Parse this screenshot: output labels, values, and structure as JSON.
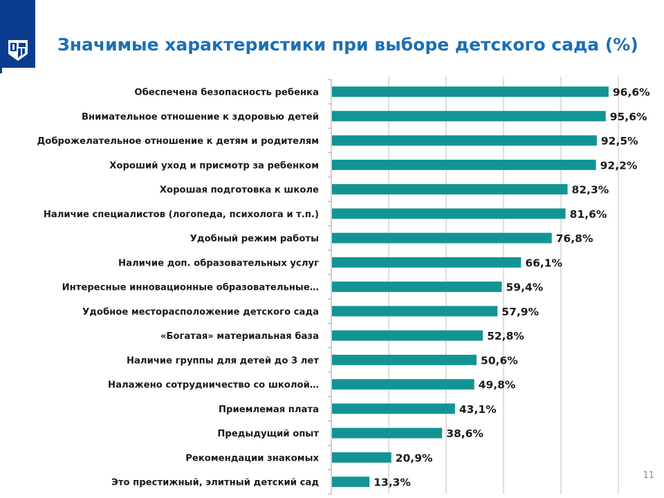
{
  "slide": {
    "title": "Значимые характеристики при выборе детского сада (%)",
    "page_number": "11",
    "logo_icon": "publisher-logo-icon",
    "colors": {
      "logo_background": "#0a3d8f",
      "title": "#1a6fb5",
      "bar": "#139494",
      "gridline": "#c8c8c8"
    }
  },
  "chart_data": {
    "type": "bar",
    "orientation": "horizontal",
    "title": "Значимые характеристики при выборе детского сада (%)",
    "xlabel": "",
    "ylabel": "",
    "xlim": [
      0,
      120
    ],
    "grid": true,
    "legend": "none",
    "value_suffix": "%",
    "categories": [
      "Обеспечена безопасность ребенка",
      "Внимательное отношение к здоровью детей",
      "Доброжелательное отношение к детям и родителям",
      "Хороший уход и присмотр за ребенком",
      "Хорошая подготовка к школе",
      "Наличие  специалистов (логопеда, психолога и т.п.)",
      "Удобный режим работы",
      "Наличие доп. образовательных услуг",
      "Интересные инновационные образовательные…",
      "Удобное месторасположение детского сада",
      "«Богатая» материальная база",
      "Наличие группы для детей до 3 лет",
      "Налажено сотрудничество со школой…",
      "Приемлемая плата",
      "Предыдущий опыт",
      "Рекомендации знакомых",
      "Это престижный, элитный детский сад"
    ],
    "values": [
      96.6,
      95.6,
      92.5,
      92.2,
      82.3,
      81.6,
      76.8,
      66.1,
      59.4,
      57.9,
      52.8,
      50.6,
      49.8,
      43.1,
      38.6,
      20.9,
      13.3
    ],
    "data_labels": [
      "96,6%",
      "95,6%",
      "92,5%",
      "92,2%",
      "82,3%",
      "81,6%",
      "76,8%",
      "66,1%",
      "59,4%",
      "57,9%",
      "52,8%",
      "50,6%",
      "49,8%",
      "43,1%",
      "38,6%",
      "20,9%",
      "13,3%"
    ]
  }
}
